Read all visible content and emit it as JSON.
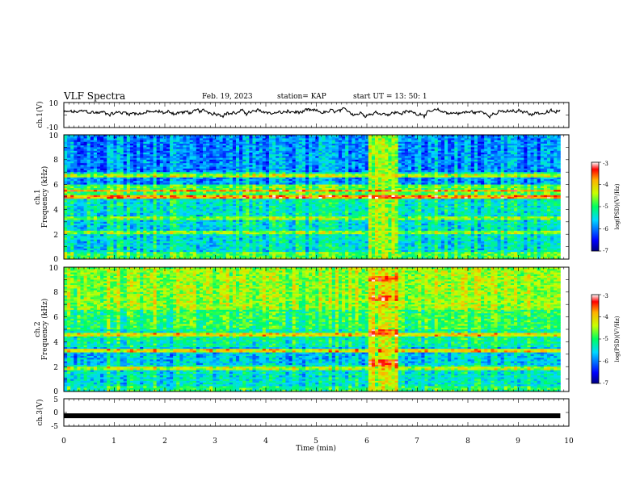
{
  "header": {
    "title": "VLF Spectra",
    "date": "Feb. 19, 2023",
    "station": "station= KAP",
    "start": "start  UT  =   13: 50: 1"
  },
  "chart_data": [
    {
      "type": "line",
      "name": "ch1-waveform",
      "ylabel": "ch.1(V)",
      "ylim": [
        -10,
        10
      ],
      "yticks": [
        "10",
        "-10"
      ],
      "xlim": [
        0,
        10
      ],
      "x_extent": 9.83,
      "baseline_V": 2
    },
    {
      "type": "heatmap",
      "name": "ch1-spectrogram",
      "ylabel_line1": "ch.1",
      "ylabel_line2": "Frequency (kHz)",
      "ylim": [
        0,
        10
      ],
      "yticks": [
        "0",
        "2",
        "4",
        "6",
        "8",
        "10"
      ],
      "xlim": [
        0,
        10
      ],
      "x_extent": 9.83,
      "burst_interval_min": [
        6.0,
        6.63
      ],
      "colorbar": {
        "label": "log(PSD)(V²/Hz)",
        "ticks": [
          "-3",
          "-4",
          "-5",
          "-6",
          "-7"
        ],
        "range": [
          -7,
          -3
        ]
      }
    },
    {
      "type": "heatmap",
      "name": "ch2-spectrogram",
      "ylabel_line1": "ch.2",
      "ylabel_line2": "Frequency (kHz)",
      "ylim": [
        0,
        10
      ],
      "yticks": [
        "0",
        "2",
        "4",
        "6",
        "8",
        "10"
      ],
      "xlim": [
        0,
        10
      ],
      "x_extent": 9.83,
      "burst_interval_min": [
        6.0,
        6.63
      ],
      "colorbar": {
        "label": "log(PSD)(V²/Hz)",
        "ticks": [
          "-3",
          "-4",
          "-5",
          "-6",
          "-7"
        ],
        "range": [
          -7,
          -3
        ]
      }
    },
    {
      "type": "line",
      "name": "ch3-waveform",
      "ylabel": "ch.3(V)",
      "ylim": [
        -5,
        5
      ],
      "yticks": [
        "5",
        "0",
        "-5"
      ],
      "xlim": [
        0,
        10
      ],
      "x_extent": 9.83,
      "constant_V": -1.2
    }
  ],
  "xaxis": {
    "label": "Time  (min)",
    "ticks": [
      "0",
      "1",
      "2",
      "3",
      "4",
      "5",
      "6",
      "7",
      "8",
      "9",
      "10"
    ]
  }
}
